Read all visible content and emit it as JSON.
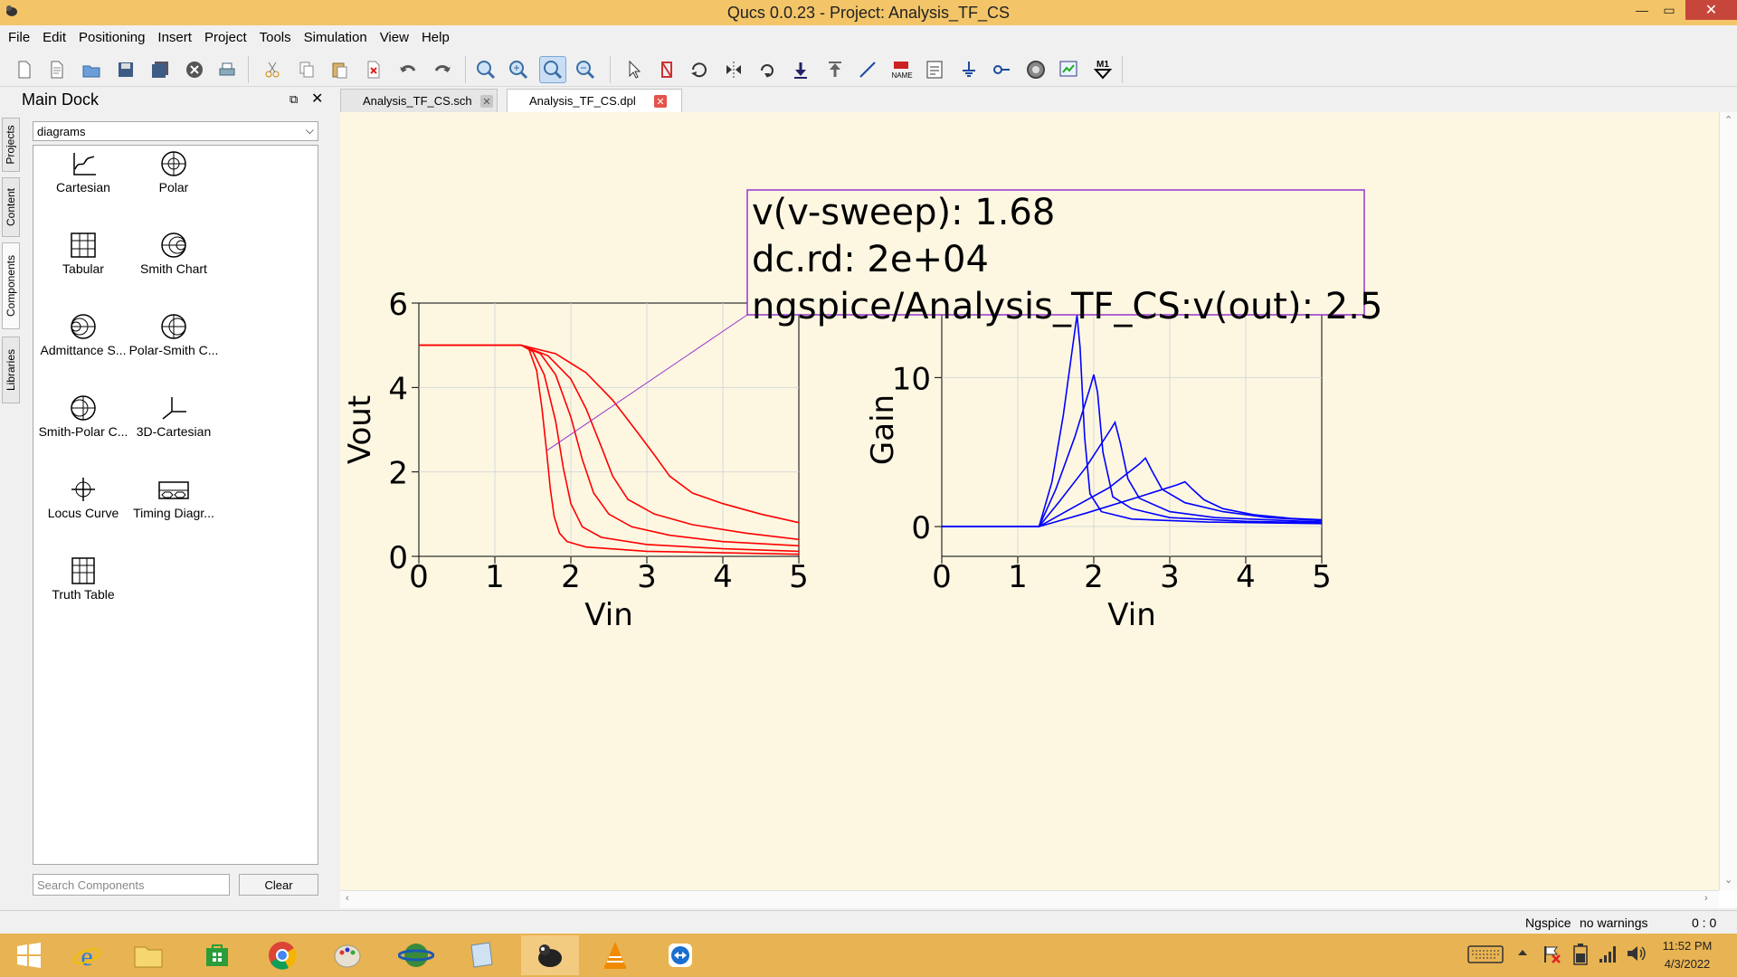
{
  "window": {
    "title": "Qucs 0.0.23 - Project: Analysis_TF_CS",
    "min_glyph": "—",
    "max_glyph": "▭",
    "close_glyph": "✕"
  },
  "menu": [
    "File",
    "Edit",
    "Positioning",
    "Insert",
    "Project",
    "Tools",
    "Simulation",
    "View",
    "Help"
  ],
  "toolbar_icons": [
    "new-file-icon",
    "new-text-icon",
    "open-icon",
    "save-icon",
    "save-all-icon",
    "close-doc-icon",
    "print-icon",
    "cut-icon",
    "copy-icon",
    "paste-icon",
    "delete-icon",
    "undo-icon",
    "redo-icon",
    "zoom-fit-icon",
    "zoom-in-icon",
    "zoom-selection-icon",
    "zoom-out-icon",
    "select-icon",
    "deactivate-icon",
    "rotate-icon",
    "mirror-x-icon",
    "mirror-y-icon",
    "enter-subcircuit-icon",
    "exit-subcircuit-icon",
    "wire-icon",
    "wire-label-icon",
    "equation-icon",
    "ground-icon",
    "port-icon",
    "simulate-icon",
    "view-data-icon",
    "marker-icon"
  ],
  "toolbar_labels": {
    "name_tag": "NAME",
    "marker_tag": "M1"
  },
  "vertical_tabs": [
    "Projects",
    "Content",
    "Components",
    "Libraries"
  ],
  "dock": {
    "title": "Main Dock",
    "category": "diagrams",
    "components": [
      "Cartesian",
      "Polar",
      "Tabular",
      "Smith Chart",
      "Admittance S...",
      "Polar-Smith C...",
      "Smith-Polar C...",
      "3D-Cartesian",
      "Locus Curve",
      "Timing Diagr...",
      "Truth Table"
    ],
    "search_placeholder": "Search Components",
    "clear_label": "Clear"
  },
  "doc_tabs": [
    {
      "label": "Analysis_TF_CS.sch",
      "active": false
    },
    {
      "label": "Analysis_TF_CS.dpl",
      "active": true
    }
  ],
  "marker": {
    "line1": "v(v-sweep): 1.68",
    "line2": "dc.rd: 2e+04",
    "line3": "ngspice/Analysis_TF_CS:v(out): 2.5",
    "point": {
      "x": 1.68,
      "y": 2.5
    }
  },
  "chart_data": [
    {
      "type": "line",
      "xlabel": "Vin",
      "ylabel": "Vout",
      "xlim": [
        0,
        5
      ],
      "ylim": [
        0,
        6
      ],
      "xticks": [
        0,
        1,
        2,
        3,
        4,
        5
      ],
      "yticks": [
        0,
        2,
        4,
        6
      ],
      "grid": true,
      "color": "#ff0000",
      "series": [
        {
          "x": [
            0,
            1.35,
            1.45,
            1.55,
            1.62,
            1.68,
            1.73,
            1.78,
            1.85,
            1.95,
            2.2,
            3,
            5
          ],
          "y": [
            5,
            5,
            4.9,
            4.4,
            3.5,
            2.5,
            1.6,
            0.95,
            0.55,
            0.35,
            0.22,
            0.12,
            0.05
          ]
        },
        {
          "x": [
            0,
            1.35,
            1.5,
            1.65,
            1.8,
            1.9,
            2.0,
            2.15,
            2.4,
            3,
            4,
            5
          ],
          "y": [
            5,
            5,
            4.85,
            4.3,
            3.2,
            2.1,
            1.25,
            0.7,
            0.45,
            0.28,
            0.18,
            0.12
          ]
        },
        {
          "x": [
            0,
            1.35,
            1.6,
            1.8,
            2.0,
            2.15,
            2.3,
            2.5,
            2.8,
            3.3,
            4,
            5
          ],
          "y": [
            5,
            5,
            4.8,
            4.3,
            3.3,
            2.3,
            1.5,
            1.0,
            0.7,
            0.5,
            0.35,
            0.25
          ]
        },
        {
          "x": [
            0,
            1.35,
            1.7,
            2.0,
            2.2,
            2.4,
            2.55,
            2.75,
            3.1,
            3.6,
            4.3,
            5
          ],
          "y": [
            5,
            5,
            4.75,
            4.2,
            3.5,
            2.6,
            1.9,
            1.35,
            1.0,
            0.75,
            0.55,
            0.4
          ]
        },
        {
          "x": [
            0,
            1.35,
            1.8,
            2.2,
            2.55,
            2.85,
            3.1,
            3.3,
            3.6,
            4,
            4.5,
            5
          ],
          "y": [
            5,
            5,
            4.8,
            4.35,
            3.7,
            3.0,
            2.4,
            1.9,
            1.5,
            1.25,
            1.0,
            0.8
          ]
        }
      ]
    },
    {
      "type": "line",
      "xlabel": "Vin",
      "ylabel": "Gain",
      "xlim": [
        0,
        5
      ],
      "ylim": [
        -2,
        15
      ],
      "xticks": [
        0,
        1,
        2,
        3,
        4,
        5
      ],
      "yticks": [
        0,
        10
      ],
      "grid": true,
      "color": "#0000ff",
      "series": [
        {
          "x": [
            0,
            1.28,
            1.45,
            1.6,
            1.72,
            1.78,
            1.82,
            1.88,
            1.95,
            2.1,
            2.5,
            3.5,
            5
          ],
          "y": [
            0,
            0,
            3,
            7.5,
            12,
            14.2,
            12,
            6,
            2.2,
            1,
            0.5,
            0.3,
            0.2
          ]
        },
        {
          "x": [
            0,
            1.28,
            1.5,
            1.75,
            1.95,
            2.0,
            2.05,
            2.12,
            2.25,
            2.5,
            3,
            4,
            5
          ],
          "y": [
            0,
            0,
            2.5,
            6,
            9.3,
            10.2,
            9,
            5,
            2,
            1.2,
            0.6,
            0.35,
            0.25
          ]
        },
        {
          "x": [
            0,
            1.28,
            1.55,
            1.9,
            2.22,
            2.28,
            2.35,
            2.45,
            2.6,
            3,
            3.6,
            5
          ],
          "y": [
            0,
            0,
            1.7,
            4,
            6.5,
            7,
            5.6,
            3.2,
            1.9,
            1,
            0.6,
            0.3
          ]
        },
        {
          "x": [
            0,
            1.28,
            1.7,
            2.2,
            2.6,
            2.68,
            2.76,
            2.9,
            3.2,
            3.7,
            4.3,
            5
          ],
          "y": [
            0,
            0,
            1.2,
            2.6,
            4.2,
            4.6,
            3.8,
            2.5,
            1.6,
            1,
            0.6,
            0.4
          ]
        },
        {
          "x": [
            0,
            1.28,
            1.9,
            2.6,
            3.1,
            3.2,
            3.3,
            3.45,
            3.7,
            4.1,
            4.6,
            5
          ],
          "y": [
            0,
            0,
            0.9,
            2.0,
            2.8,
            3.0,
            2.5,
            1.8,
            1.2,
            0.8,
            0.55,
            0.45
          ]
        }
      ]
    }
  ],
  "status": {
    "simulator": "Ngspice",
    "warnings": "no warnings",
    "position": "0 : 0"
  },
  "taskbar": {
    "apps": [
      "start-icon",
      "ie-icon",
      "explorer-icon",
      "store-icon",
      "chrome-icon",
      "paint-icon",
      "globe-app-icon",
      "notes-icon",
      "qucs-icon",
      "vlc-icon",
      "teamviewer-icon"
    ],
    "time": "11:52 PM",
    "date": "4/3/2022",
    "colors": {
      "accent": "#e8b352",
      "title": "#f3c568"
    }
  }
}
